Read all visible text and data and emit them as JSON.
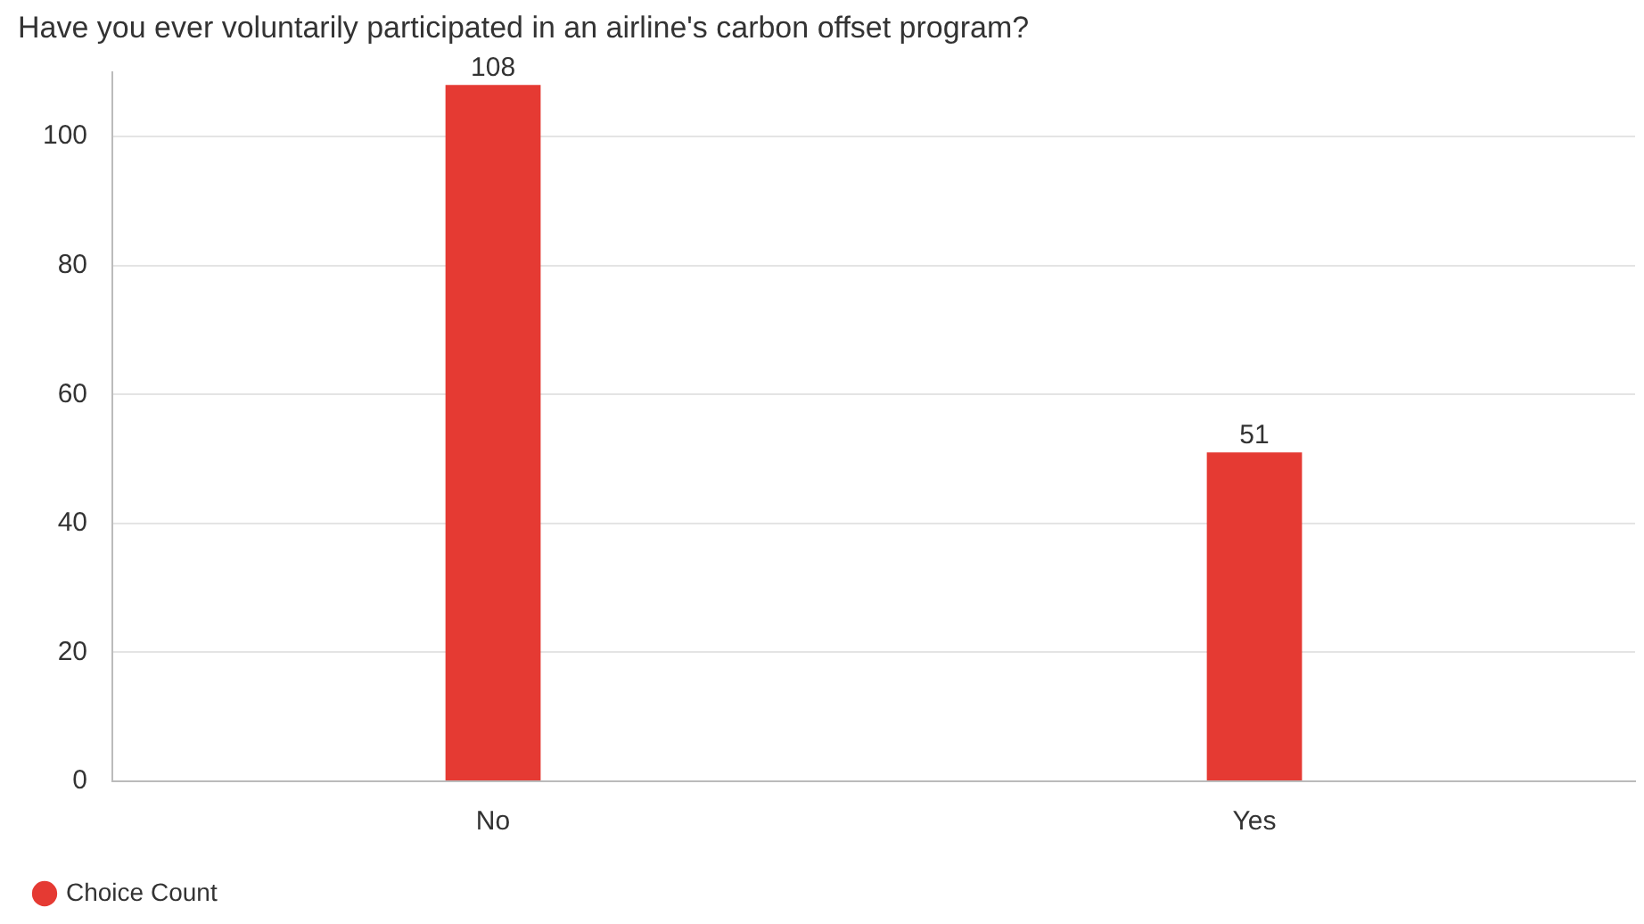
{
  "chart_data": {
    "type": "bar",
    "title": "Have you ever voluntarily participated in an airline's carbon offset program?",
    "categories": [
      "No",
      "Yes"
    ],
    "series": [
      {
        "name": "Choice Count",
        "color": "#e53a33",
        "values": [
          108,
          51
        ]
      }
    ],
    "ylim": [
      0,
      110
    ],
    "yticks": [
      0,
      20,
      40,
      60,
      80,
      100
    ],
    "grid": "y",
    "legend": "bottom left",
    "data_labels": true
  }
}
